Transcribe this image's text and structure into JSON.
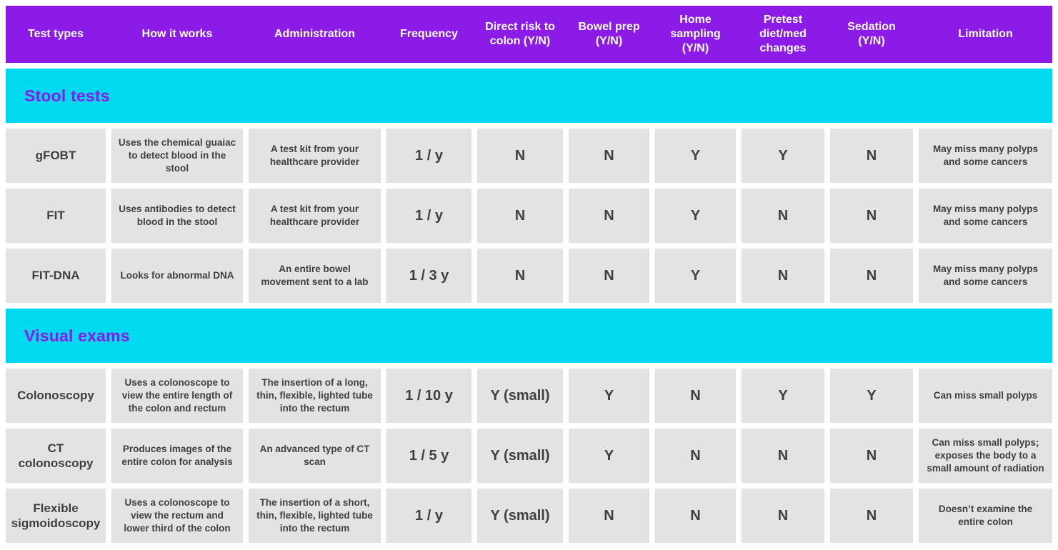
{
  "colors": {
    "header_bg": "#8C1BE8",
    "header_text": "#FFFFFF",
    "section_bg": "#00D9F0",
    "section_title_text": "#8C1BE8",
    "cell_bg": "#E3E3E3",
    "cell_text": "#3F3F3F",
    "page_bg": "#FFFFFF"
  },
  "table": {
    "columns": [
      "Test types",
      "How it works",
      "Administration",
      "Frequency",
      "Direct risk to colon (Y/N)",
      "Bowel prep (Y/N)",
      "Home sampling (Y/N)",
      "Pretest diet/med changes",
      "Sedation (Y/N)",
      "Limitation"
    ],
    "sections": [
      {
        "title": "Stool tests",
        "rows": [
          {
            "test_type": "gFOBT",
            "how_it_works": "Uses the chemical guaiac to detect blood in the stool",
            "administration": "A test kit from your healthcare provider",
            "frequency": "1 / y",
            "direct_risk": "N",
            "bowel_prep": "N",
            "home_sampling": "Y",
            "pretest_changes": "Y",
            "sedation": "N",
            "limitation": "May miss many polyps and some cancers"
          },
          {
            "test_type": "FIT",
            "how_it_works": "Uses antibodies to detect blood in the stool",
            "administration": "A test kit from your healthcare provider",
            "frequency": "1 / y",
            "direct_risk": "N",
            "bowel_prep": "N",
            "home_sampling": "Y",
            "pretest_changes": "N",
            "sedation": "N",
            "limitation": "May miss many polyps and some cancers"
          },
          {
            "test_type": "FIT-DNA",
            "how_it_works": "Looks for abnormal DNA",
            "administration": "An entire bowel movement sent to a lab",
            "frequency": "1 / 3 y",
            "direct_risk": "N",
            "bowel_prep": "N",
            "home_sampling": "Y",
            "pretest_changes": "N",
            "sedation": "N",
            "limitation": "May miss many polyps and some cancers"
          }
        ]
      },
      {
        "title": "Visual exams",
        "rows": [
          {
            "test_type": "Colonoscopy",
            "how_it_works": "Uses a colonoscope to view the entire length of the colon and rectum",
            "administration": "The insertion of a long, thin, flexible, lighted tube into the rectum",
            "frequency": "1 / 10 y",
            "direct_risk": "Y (small)",
            "bowel_prep": "Y",
            "home_sampling": "N",
            "pretest_changes": "Y",
            "sedation": "Y",
            "limitation": "Can miss small polyps"
          },
          {
            "test_type": "CT colonoscopy",
            "how_it_works": "Produces images of the entire colon for analysis",
            "administration": "An advanced type of CT scan",
            "frequency": "1 / 5 y",
            "direct_risk": "Y (small)",
            "bowel_prep": "Y",
            "home_sampling": "N",
            "pretest_changes": "N",
            "sedation": "N",
            "limitation": "Can miss small polyps; exposes the body to a small amount of radiation"
          },
          {
            "test_type": "Flexible sigmoidoscopy",
            "how_it_works": "Uses a colonoscope to view the rectum and lower third of the colon",
            "administration": "The insertion of a short, thin, flexible, lighted tube into the rectum",
            "frequency": "1 / y",
            "direct_risk": "Y (small)",
            "bowel_prep": "N",
            "home_sampling": "N",
            "pretest_changes": "N",
            "sedation": "N",
            "limitation": "Doesn’t examine the entire colon"
          }
        ]
      }
    ]
  }
}
